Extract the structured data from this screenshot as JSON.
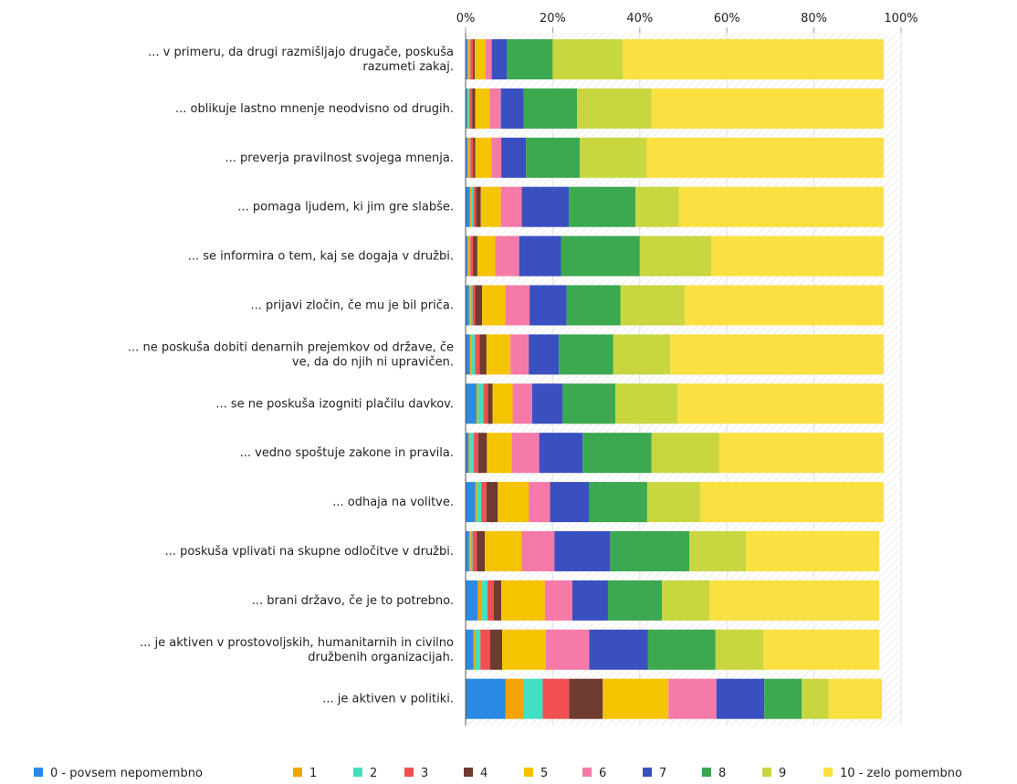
{
  "chart_data": {
    "type": "bar",
    "orientation": "horizontal",
    "stacked": true,
    "percent": true,
    "xlim": [
      0,
      100
    ],
    "ticks": [
      "0%",
      "20%",
      "40%",
      "60%",
      "80%",
      "100%"
    ],
    "grid": true,
    "legend_position": "bottom",
    "categories": [
      "... v primeru, da drugi razmišljajo drugače, poskuša razumeti zakaj.",
      "... oblikuje lastno mnenje neodvisno od drugih.",
      "... preverja pravilnost svojega mnenja.",
      "... pomaga ljudem, ki jim gre slabše.",
      "... se informira o tem, kaj se dogaja v družbi.",
      "... prijavi zločin, če mu je bil priča.",
      "... ne poskuša dobiti denarnih prejemkov od države, če ve, da do njih ni upravičen.",
      "... se ne poskuša izogniti plačilu davkov.",
      "... vedno spoštuje zakone in pravila.",
      "... odhaja na volitve.",
      "... poskuša vplivati na skupne odločitve v družbi.",
      "... brani državo, če je to potrebno.",
      "... je aktiven v prostovoljskih, humanitarnih in civilno družbenih organizacijah.",
      "... je aktiven v politiki."
    ],
    "category_lines": [
      [
        "... v primeru, da drugi razmišljajo drugače, poskuša",
        "razumeti zakaj."
      ],
      [
        "... oblikuje lastno mnenje neodvisno od drugih."
      ],
      [
        "... preverja pravilnost svojega mnenja."
      ],
      [
        "... pomaga ljudem, ki jim gre slabše."
      ],
      [
        "... se informira o tem, kaj se dogaja v družbi."
      ],
      [
        "... prijavi zločin, če mu je bil priča."
      ],
      [
        "... ne poskuša dobiti denarnih prejemkov od države, če",
        "ve, da do njih ni upravičen."
      ],
      [
        "... se ne poskuša izogniti plačilu davkov."
      ],
      [
        "... vedno spoštuje zakone in pravila."
      ],
      [
        "... odhaja na volitve."
      ],
      [
        "... poskuša vplivati na skupne odločitve v družbi."
      ],
      [
        "... brani državo, če je to potrebno."
      ],
      [
        "... je aktiven v prostovoljskih, humanitarnih in civilno",
        "družbenih organizacijah."
      ],
      [
        "... je aktiven v politiki."
      ]
    ],
    "series": [
      {
        "name": "0 - povsem nepomembno",
        "color": "#2b8ae3",
        "values": [
          0.4,
          0.4,
          0.4,
          1.0,
          0.4,
          0.8,
          1.0,
          2.5,
          0.7,
          2.2,
          0.8,
          2.8,
          1.8,
          9.2
        ]
      },
      {
        "name": "1",
        "color": "#f5a300",
        "values": [
          0.4,
          0.2,
          0.4,
          0.4,
          0.4,
          0.4,
          0.4,
          0.4,
          0.4,
          0.4,
          0.4,
          1.0,
          0.4,
          4.0
        ]
      },
      {
        "name": "2",
        "color": "#40e0c0",
        "values": [
          0.3,
          0.3,
          0.3,
          0.4,
          0.3,
          0.4,
          0.8,
          1.2,
          0.8,
          1.0,
          0.4,
          1.2,
          1.2,
          4.5
        ]
      },
      {
        "name": "3",
        "color": "#f05050",
        "values": [
          0.6,
          0.6,
          0.6,
          0.6,
          0.6,
          0.6,
          1.0,
          1.0,
          1.0,
          1.2,
          1.0,
          1.5,
          2.2,
          6.1
        ]
      },
      {
        "name": "4",
        "color": "#6e3b30",
        "values": [
          0.4,
          0.7,
          0.5,
          1.1,
          1.0,
          1.6,
          1.6,
          1.1,
          2.0,
          2.6,
          1.8,
          1.7,
          2.8,
          7.7
        ]
      },
      {
        "name": "5",
        "color": "#f5c400",
        "values": [
          2.5,
          3.3,
          3.7,
          4.6,
          4.1,
          5.3,
          5.5,
          4.6,
          5.7,
          7.1,
          8.5,
          10.0,
          10.0,
          15.1
        ]
      },
      {
        "name": "6",
        "color": "#f57aa8",
        "values": [
          1.4,
          2.6,
          2.3,
          4.8,
          5.5,
          5.6,
          4.2,
          4.5,
          6.3,
          4.9,
          7.5,
          6.3,
          10.0,
          11.0
        ]
      },
      {
        "name": "7",
        "color": "#3a4fc0",
        "values": [
          3.5,
          5.2,
          5.7,
          10.8,
          9.6,
          8.5,
          6.9,
          7.0,
          10.0,
          8.9,
          12.8,
          8.2,
          13.5,
          11.0
        ]
      },
      {
        "name": "8",
        "color": "#3ca84f",
        "values": [
          10.5,
          12.3,
          12.3,
          15.3,
          18.1,
          12.4,
          12.5,
          12.1,
          15.8,
          13.4,
          18.2,
          12.4,
          15.5,
          8.6
        ]
      },
      {
        "name": "9",
        "color": "#c8d640",
        "values": [
          16.1,
          17.1,
          15.4,
          10.0,
          16.4,
          14.7,
          13.1,
          14.3,
          15.5,
          12.2,
          13.0,
          10.9,
          11.0,
          6.2
        ]
      },
      {
        "name": "10 - zelo pomembno",
        "color": "#fae040",
        "values": [
          59.9,
          53.3,
          54.4,
          47.0,
          39.6,
          45.7,
          49.0,
          47.3,
          37.8,
          42.1,
          30.6,
          39.0,
          26.6,
          12.2
        ]
      }
    ]
  }
}
